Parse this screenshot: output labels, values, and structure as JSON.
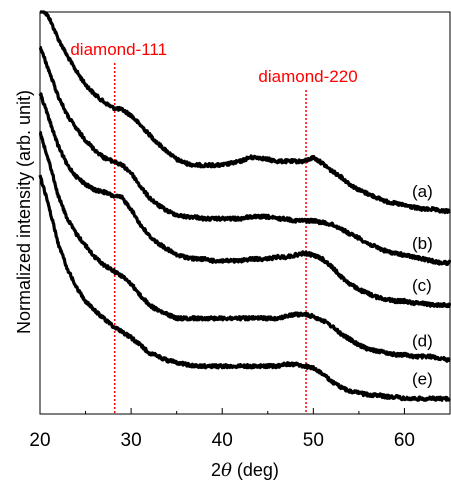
{
  "chart_data": {
    "type": "line",
    "xlabel_prefix": "2",
    "xlabel_symbol": "θ",
    "xlabel_suffix": " (deg)",
    "ylabel": "Normalized  intensity (arb. unit)",
    "xlim": [
      20,
      65
    ],
    "x_ticks": [
      20,
      30,
      40,
      50,
      60
    ],
    "x_tick_labels": [
      "20",
      "30",
      "40",
      "50",
      "60"
    ],
    "x_minor_ticks": [
      25,
      35,
      45,
      55,
      65
    ],
    "y_axis_numeric_labels": false,
    "line_color": "#000000",
    "reference_lines": [
      {
        "label": "diamond-111",
        "x": 28.2,
        "color": "#ff0000",
        "style": "dotted"
      },
      {
        "label": "diamond-220",
        "x": 49.2,
        "color": "#ff0000",
        "style": "dotted"
      }
    ],
    "x": [
      20,
      21,
      22,
      23,
      24,
      25,
      26,
      27,
      28,
      29,
      30,
      31,
      32,
      33,
      34,
      35,
      36,
      37,
      38,
      39,
      40,
      41,
      42,
      43,
      44,
      45,
      46,
      47,
      48,
      49,
      50,
      51,
      52,
      53,
      54,
      55,
      56,
      57,
      58,
      59,
      60,
      61,
      62,
      63,
      64,
      65
    ],
    "series": [
      {
        "name": "(a)",
        "values": [
          -0.3,
          0.3,
          1.4,
          2.3,
          3.1,
          3.8,
          4.3,
          4.7,
          5.0,
          5.1,
          5.4,
          5.9,
          6.4,
          6.9,
          7.3,
          7.7,
          7.9,
          8.0,
          8.0,
          8.0,
          8.0,
          7.9,
          7.8,
          7.6,
          7.6,
          7.7,
          7.8,
          7.8,
          7.8,
          7.8,
          7.6,
          7.9,
          8.3,
          8.6,
          9.0,
          9.3,
          9.5,
          9.7,
          9.9,
          10.0,
          10.1,
          10.2,
          10.3,
          10.3,
          10.4,
          10.4
        ]
      },
      {
        "name": "(b)",
        "values": [
          1.8,
          3.1,
          4.4,
          5.4,
          6.1,
          6.7,
          7.2,
          7.6,
          7.8,
          8.0,
          8.4,
          9.1,
          9.7,
          10.1,
          10.4,
          10.6,
          10.7,
          10.7,
          10.8,
          10.8,
          10.8,
          10.8,
          10.8,
          10.7,
          10.7,
          10.7,
          10.8,
          10.8,
          10.9,
          10.9,
          10.9,
          11.0,
          11.1,
          11.3,
          11.6,
          11.8,
          12.1,
          12.3,
          12.5,
          12.6,
          12.7,
          12.8,
          12.9,
          13.0,
          13.1,
          13.1
        ]
      },
      {
        "name": "(c)",
        "values": [
          4.2,
          5.6,
          7.0,
          8.0,
          8.6,
          9.0,
          9.3,
          9.4,
          9.6,
          9.7,
          10.3,
          11.1,
          11.7,
          12.1,
          12.4,
          12.7,
          12.8,
          12.9,
          12.9,
          13.0,
          13.0,
          13.0,
          13.0,
          12.9,
          12.9,
          12.9,
          12.8,
          12.8,
          12.7,
          12.6,
          12.7,
          12.9,
          13.3,
          13.8,
          14.2,
          14.5,
          14.7,
          14.9,
          15.0,
          15.1,
          15.1,
          15.2,
          15.2,
          15.3,
          15.3,
          15.3
        ]
      },
      {
        "name": "(d)",
        "values": [
          6.3,
          7.8,
          9.6,
          10.8,
          11.6,
          12.2,
          12.8,
          13.2,
          13.5,
          13.8,
          14.2,
          14.8,
          15.3,
          15.6,
          15.8,
          16.0,
          16.0,
          16.0,
          16.0,
          16.0,
          16.0,
          16.0,
          16.0,
          16.0,
          16.0,
          16.0,
          16.0,
          15.9,
          15.8,
          15.8,
          15.9,
          16.1,
          16.4,
          16.8,
          17.1,
          17.4,
          17.6,
          17.7,
          17.8,
          17.9,
          17.9,
          18.0,
          18.0,
          18.0,
          18.1,
          18.2
        ]
      },
      {
        "name": "(e)",
        "values": [
          8.5,
          10.2,
          12.1,
          13.4,
          14.4,
          15.1,
          15.6,
          16.0,
          16.4,
          16.7,
          17.0,
          17.4,
          17.8,
          18.0,
          18.2,
          18.3,
          18.4,
          18.5,
          18.5,
          18.5,
          18.5,
          18.5,
          18.5,
          18.5,
          18.5,
          18.5,
          18.5,
          18.4,
          18.4,
          18.5,
          18.6,
          18.9,
          19.3,
          19.6,
          19.8,
          19.9,
          20.0,
          20.0,
          20.1,
          20.1,
          20.2,
          20.2,
          20.2,
          20.2,
          20.2,
          20.2
        ]
      }
    ],
    "y_scale": "inverted-offset-arbitrary",
    "ylim": [
      0,
      21
    ]
  }
}
